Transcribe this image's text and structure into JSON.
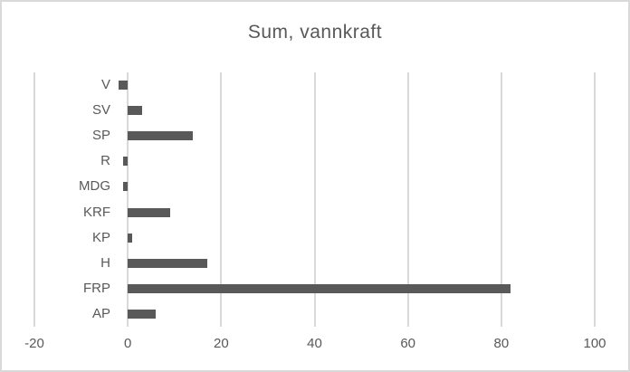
{
  "title": "Sum, vannkraft",
  "colors": {
    "bar": "#595959",
    "gridline": "#d9d9d9",
    "text": "#595959",
    "border": "#d9d9d9",
    "background": "#ffffff"
  },
  "chart_data": {
    "type": "bar",
    "orientation": "horizontal",
    "title": "Sum, vannkraft",
    "categories_top_to_bottom": [
      "V",
      "SV",
      "SP",
      "R",
      "MDG",
      "KRF",
      "KP",
      "H",
      "FRP",
      "AP"
    ],
    "values": [
      -2,
      3,
      14,
      -1,
      -1,
      9,
      1,
      17,
      82,
      6
    ],
    "xlabel": "",
    "ylabel": "",
    "xlim": [
      -20,
      100
    ],
    "xticks": [
      -20,
      0,
      20,
      40,
      60,
      80,
      100
    ],
    "grid": true,
    "legend": false
  }
}
